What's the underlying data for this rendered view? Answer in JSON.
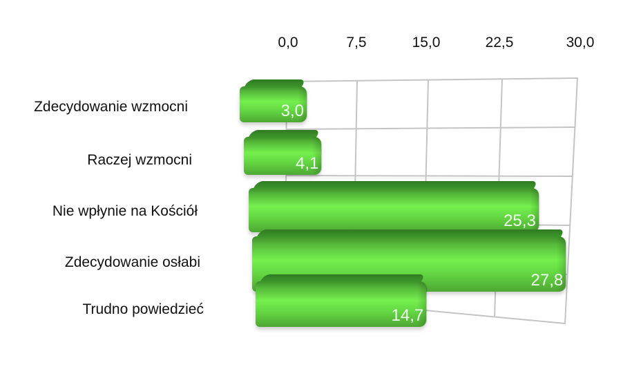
{
  "chart_data": {
    "type": "bar",
    "orientation": "horizontal",
    "style": "3d",
    "title": "",
    "xlabel": "",
    "ylabel": "",
    "categories": [
      "Zdecydowanie wzmocni",
      "Raczej wzmocni",
      "Nie wpłynie na Kościół",
      "Zdecydowanie osłabi",
      "Trudno powiedzieć"
    ],
    "values": [
      3.0,
      4.1,
      25.3,
      27.8,
      14.7
    ],
    "value_labels": [
      "3,0",
      "4,1",
      "25,3",
      "27,8",
      "14,7"
    ],
    "xlim": [
      0,
      30
    ],
    "x_ticks": [
      "0,0",
      "7,5",
      "15,0",
      "22,5",
      "30,0"
    ],
    "x_tick_position": "top",
    "grid": true,
    "legend": null,
    "bar_color": "#5ccf3e",
    "label_color": "#ffffff"
  }
}
